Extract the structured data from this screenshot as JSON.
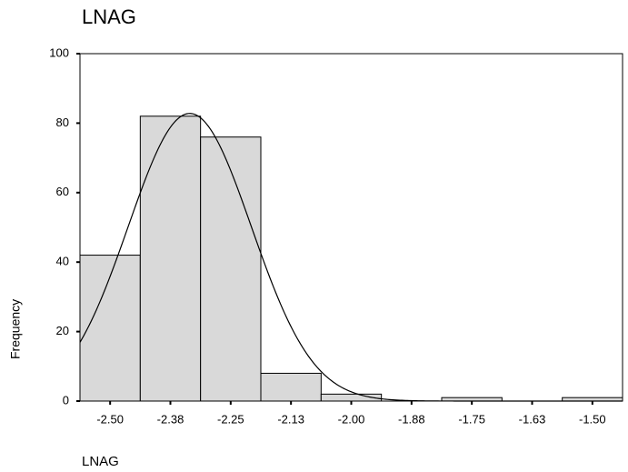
{
  "chart_data": {
    "type": "histogram",
    "title": "LNAG",
    "x_label": "LNAG",
    "y_label": "Frequency",
    "bins": [
      -2.5625,
      -2.4375,
      -2.3125,
      -2.1875,
      -2.0625,
      -1.9375,
      -1.8125,
      -1.6875,
      -1.5625,
      -1.4375
    ],
    "values": [
      42,
      82,
      76,
      8,
      2,
      0,
      1,
      0,
      1
    ],
    "color": "#d9d9d9",
    "xlim": [
      -2.5625,
      -1.4375
    ],
    "xticks": [
      {
        "value": -2.5,
        "label": "-2.50"
      },
      {
        "value": -2.375,
        "label": "-2.38"
      },
      {
        "value": -2.25,
        "label": "-2.25"
      },
      {
        "value": -2.125,
        "label": "-2.13"
      },
      {
        "value": -2.0,
        "label": "-2.00"
      },
      {
        "value": -1.875,
        "label": "-1.88"
      },
      {
        "value": -1.75,
        "label": "-1.75"
      },
      {
        "value": -1.625,
        "label": "-1.63"
      },
      {
        "value": -1.5,
        "label": "-1.50"
      }
    ],
    "ylim": [
      0,
      100
    ],
    "yticks": [
      0,
      20,
      40,
      60,
      80,
      100
    ],
    "normal_curve": true
  }
}
